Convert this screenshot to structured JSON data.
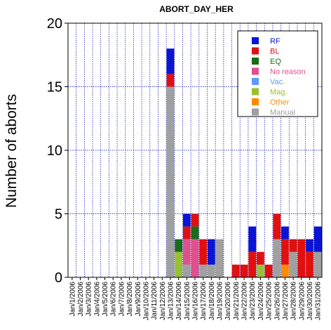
{
  "chart_data": {
    "type": "bar",
    "title": "ABORT_DAY_HER",
    "xlabel": "",
    "ylabel": "Number of aborts",
    "ylim": [
      0,
      20
    ],
    "yticks": [
      0,
      5,
      10,
      15,
      20
    ],
    "grid": true,
    "stacked": true,
    "legend_position": "top-right",
    "categories": [
      "Jan/1/2006",
      "Jan/2/2006",
      "Jan/3/2006",
      "Jan/4/2006",
      "Jan/5/2006",
      "Jan/6/2006",
      "Jan/7/2006",
      "Jan/8/2006",
      "Jan/9/2006",
      "Jan/10/2006",
      "Jan/11/2006",
      "Jan/12/2006",
      "Jan/13/2006",
      "Jan/14/2006",
      "Jan/15/2006",
      "Jan/16/2006",
      "Jan/17/2006",
      "Jan/18/2006",
      "Jan/19/2006",
      "Jan/20/2006",
      "Jan/21/2006",
      "Jan/22/2006",
      "Jan/23/2006",
      "Jan/24/2006",
      "Jan/25/2006",
      "Jan/26/2006",
      "Jan/27/2006",
      "Jan/28/2006",
      "Jan/29/2006",
      "Jan/30/2006",
      "Jan/31/2006"
    ],
    "series": [
      {
        "name": "Manual",
        "color": "#a0a0a0",
        "values": [
          0,
          0,
          0,
          0,
          0,
          0,
          0,
          0,
          0,
          0,
          0,
          0,
          15,
          0,
          1,
          0,
          1,
          1,
          3,
          0,
          0,
          0,
          0,
          0,
          0,
          3,
          0,
          2,
          0,
          0,
          2
        ]
      },
      {
        "name": "Other",
        "color": "#ff8c00",
        "values": [
          0,
          0,
          0,
          0,
          0,
          0,
          0,
          0,
          0,
          0,
          0,
          0,
          0,
          0,
          0,
          0,
          0,
          0,
          0,
          0,
          0,
          0,
          0,
          0,
          0,
          0,
          1,
          0,
          0,
          0,
          0
        ]
      },
      {
        "name": "Mag.",
        "color": "#99c033",
        "values": [
          0,
          0,
          0,
          0,
          0,
          0,
          0,
          0,
          0,
          0,
          0,
          0,
          0,
          2,
          0,
          0,
          0,
          0,
          0,
          0,
          0,
          0,
          0,
          1,
          0,
          0,
          0,
          0,
          0,
          0,
          0
        ]
      },
      {
        "name": "Vac.",
        "color": "#5b9aff",
        "values": [
          0,
          0,
          0,
          0,
          0,
          0,
          0,
          0,
          0,
          0,
          0,
          0,
          0,
          0,
          0,
          0,
          0,
          0,
          0,
          0,
          0,
          0,
          0,
          0,
          0,
          0,
          0,
          0,
          0,
          0,
          0
        ]
      },
      {
        "name": "No reason",
        "color": "#e0508c",
        "values": [
          0,
          0,
          0,
          0,
          0,
          0,
          0,
          0,
          0,
          0,
          0,
          0,
          0,
          0,
          2,
          3,
          0,
          0,
          0,
          0,
          0,
          0,
          0,
          0,
          0,
          0,
          0,
          0,
          0,
          0,
          0
        ]
      },
      {
        "name": "EQ",
        "color": "#1a6b1a",
        "values": [
          0,
          0,
          0,
          0,
          0,
          0,
          0,
          0,
          0,
          0,
          0,
          0,
          0,
          1,
          0,
          1,
          0,
          0,
          0,
          0,
          0,
          0,
          0,
          0,
          0,
          0,
          0,
          0,
          0,
          0,
          0
        ]
      },
      {
        "name": "BL",
        "color": "#e01010",
        "values": [
          0,
          0,
          0,
          0,
          0,
          0,
          0,
          0,
          0,
          0,
          0,
          0,
          1,
          0,
          1,
          1,
          2,
          0,
          0,
          0,
          1,
          1,
          2,
          1,
          1,
          2,
          2,
          1,
          3,
          2,
          0
        ]
      },
      {
        "name": "RF",
        "color": "#0a14d4",
        "values": [
          0,
          0,
          0,
          0,
          0,
          0,
          0,
          0,
          0,
          0,
          0,
          0,
          2,
          0,
          1,
          0,
          0,
          2,
          0,
          0,
          0,
          0,
          2,
          0,
          0,
          0,
          1,
          0,
          0,
          1,
          2
        ]
      }
    ],
    "legend_order": [
      "RF",
      "BL",
      "EQ",
      "No reason",
      "Vac.",
      "Mag.",
      "Other",
      "Manual"
    ]
  }
}
